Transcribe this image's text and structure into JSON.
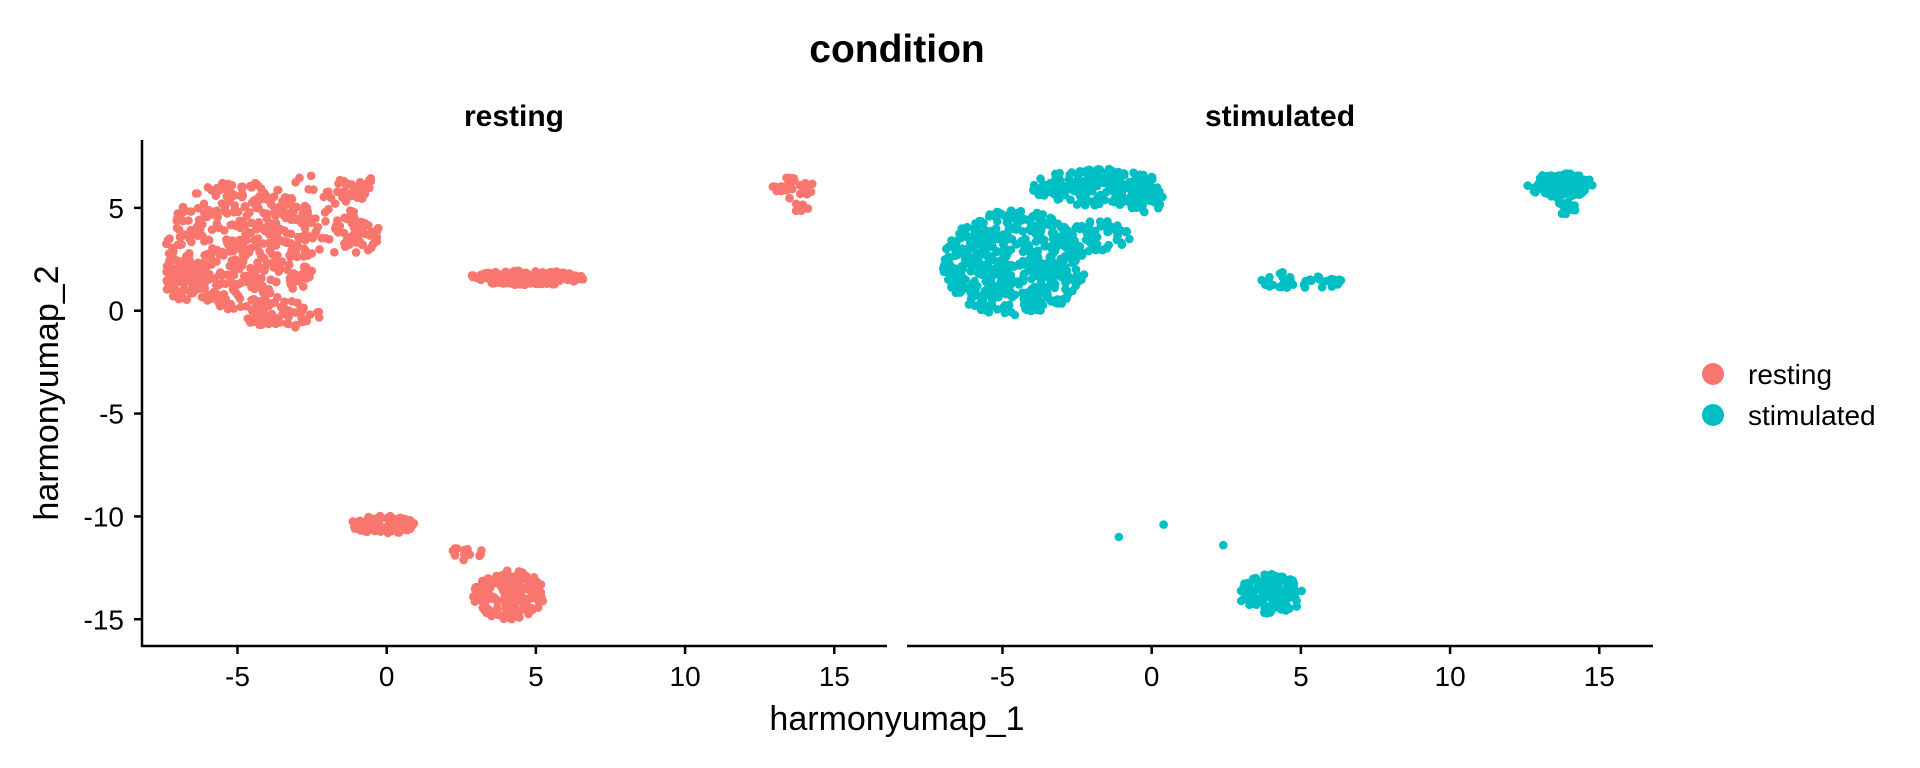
{
  "chart_data": {
    "type": "scatter",
    "title": "condition",
    "xlabel": "harmonyumap_1",
    "ylabel": "harmonyumap_2",
    "xlim": [
      -8.2,
      16.8
    ],
    "ylim": [
      -16.3,
      8.3
    ],
    "x_ticks": [
      -5,
      0,
      5,
      10,
      15
    ],
    "x_tick_labels": [
      "-5",
      "0",
      "5",
      "10",
      "15"
    ],
    "y_ticks": [
      5,
      0,
      -5,
      -10,
      -15
    ],
    "y_tick_labels": [
      "5",
      "0",
      "-5",
      "-10",
      "-15"
    ],
    "grid": false,
    "legend_position": "right",
    "legend": [
      {
        "label": "resting",
        "color": "#F8766D"
      },
      {
        "label": "stimulated",
        "color": "#00BFC4"
      }
    ],
    "panels": [
      {
        "strip_label": "resting",
        "color": "#F8766D",
        "clusters": [
          {
            "cx": -4.8,
            "cy": 3.2,
            "rx": 2.6,
            "ry": 3.2,
            "n": 420
          },
          {
            "cx": -6.8,
            "cy": 1.6,
            "rx": 0.7,
            "ry": 1.1,
            "n": 70
          },
          {
            "cx": -3.5,
            "cy": -0.2,
            "rx": 1.3,
            "ry": 0.7,
            "n": 60
          },
          {
            "cx": -2.5,
            "cy": 4.6,
            "rx": 1.8,
            "ry": 2.0,
            "n": 60
          },
          {
            "cx": -1.1,
            "cy": 3.7,
            "rx": 0.9,
            "ry": 0.9,
            "n": 50
          },
          {
            "cx": -1.0,
            "cy": 6.0,
            "rx": 0.7,
            "ry": 0.7,
            "n": 25
          },
          {
            "cx": 4.7,
            "cy": 1.6,
            "rx": 2.0,
            "ry": 0.35,
            "n": 180
          },
          {
            "cx": 13.6,
            "cy": 6.0,
            "rx": 0.7,
            "ry": 0.55,
            "n": 30
          },
          {
            "cx": 13.9,
            "cy": 5.0,
            "rx": 0.25,
            "ry": 0.3,
            "n": 6
          },
          {
            "cx": -0.1,
            "cy": -10.4,
            "rx": 1.1,
            "ry": 0.45,
            "n": 90
          },
          {
            "cx": 4.1,
            "cy": -13.8,
            "rx": 1.2,
            "ry": 1.2,
            "n": 160
          },
          {
            "cx": 2.7,
            "cy": -11.8,
            "rx": 0.6,
            "ry": 0.35,
            "n": 15
          }
        ]
      },
      {
        "strip_label": "stimulated",
        "color": "#00BFC4",
        "clusters": [
          {
            "cx": -4.6,
            "cy": 2.3,
            "rx": 2.4,
            "ry": 2.6,
            "n": 500
          },
          {
            "cx": -1.8,
            "cy": 6.0,
            "rx": 2.2,
            "ry": 0.9,
            "n": 200
          },
          {
            "cx": -1.8,
            "cy": 3.6,
            "rx": 1.1,
            "ry": 0.8,
            "n": 50
          },
          {
            "cx": -0.2,
            "cy": 5.5,
            "rx": 0.6,
            "ry": 0.8,
            "n": 40
          },
          {
            "cx": 5.0,
            "cy": 1.5,
            "rx": 1.6,
            "ry": 0.45,
            "n": 40
          },
          {
            "cx": 13.7,
            "cy": 6.1,
            "rx": 1.1,
            "ry": 0.6,
            "n": 120
          },
          {
            "cx": 13.9,
            "cy": 5.0,
            "rx": 0.3,
            "ry": 0.4,
            "n": 15
          },
          {
            "cx": 4.0,
            "cy": -13.8,
            "rx": 1.1,
            "ry": 1.0,
            "n": 110
          }
        ],
        "points": [
          [
            -1.1,
            -11.0
          ],
          [
            0.4,
            -10.4
          ],
          [
            2.4,
            -11.4
          ]
        ]
      }
    ]
  }
}
